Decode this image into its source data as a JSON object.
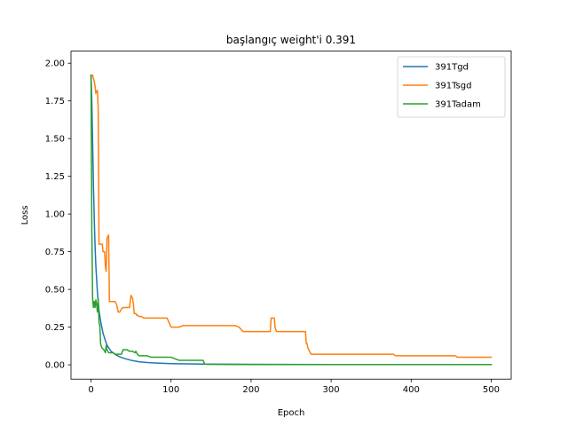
{
  "chart_data": {
    "type": "line",
    "title": "başlangıç weight'i 0.391",
    "xlabel": "Epoch",
    "ylabel": "Loss",
    "xlim": [
      -25,
      525
    ],
    "ylim": [
      -0.095,
      2.08
    ],
    "xticks": [
      0,
      100,
      200,
      300,
      400,
      500
    ],
    "yticks": [
      0.0,
      0.25,
      0.5,
      0.75,
      1.0,
      1.25,
      1.5,
      1.75,
      2.0
    ],
    "ytick_labels": [
      "0.00",
      "0.25",
      "0.50",
      "0.75",
      "1.00",
      "1.25",
      "1.50",
      "1.75",
      "2.00"
    ],
    "legend_position": "top-right",
    "grid": false,
    "series": [
      {
        "name": "391Tgd",
        "color": "#1f77b4",
        "x": [
          0,
          1,
          2,
          3,
          4,
          5,
          6,
          8,
          10,
          12,
          15,
          18,
          20,
          25,
          30,
          35,
          40,
          50,
          60,
          70,
          80,
          100,
          120,
          140,
          160,
          200,
          300,
          400,
          500
        ],
        "y": [
          1.92,
          1.75,
          1.48,
          1.2,
          0.98,
          0.8,
          0.66,
          0.48,
          0.36,
          0.29,
          0.21,
          0.16,
          0.13,
          0.09,
          0.07,
          0.055,
          0.045,
          0.03,
          0.02,
          0.015,
          0.012,
          0.008,
          0.006,
          0.005,
          0.004,
          0.003,
          0.002,
          0.002,
          0.002
        ]
      },
      {
        "name": "391Tsgd",
        "color": "#ff7f0e",
        "x": [
          0,
          2,
          3,
          4,
          5,
          6,
          7,
          8,
          9,
          10,
          11,
          12,
          14,
          15,
          17,
          18,
          19,
          20,
          21,
          22,
          23,
          24,
          25,
          26,
          28,
          30,
          32,
          34,
          36,
          38,
          40,
          42,
          44,
          46,
          48,
          50,
          52,
          53,
          54,
          55,
          56,
          57,
          58,
          60,
          63,
          66,
          70,
          75,
          80,
          85,
          90,
          95,
          100,
          110,
          115,
          120,
          130,
          140,
          150,
          160,
          170,
          180,
          185,
          190,
          200,
          210,
          220,
          224,
          225,
          226,
          227,
          228,
          229,
          230,
          231,
          232,
          240,
          250,
          260,
          265,
          268,
          269,
          270,
          271,
          275,
          280,
          290,
          300,
          310,
          320,
          330,
          340,
          350,
          360,
          370,
          378,
          380,
          390,
          400,
          410,
          420,
          430,
          440,
          450,
          455,
          458,
          460,
          470,
          480,
          490,
          500
        ],
        "y": [
          1.92,
          1.92,
          1.9,
          1.88,
          1.85,
          1.8,
          1.81,
          1.82,
          1.7,
          0.8,
          0.8,
          0.8,
          0.8,
          0.75,
          0.75,
          0.65,
          0.62,
          0.84,
          0.85,
          0.86,
          0.42,
          0.42,
          0.42,
          0.42,
          0.42,
          0.42,
          0.4,
          0.35,
          0.35,
          0.37,
          0.38,
          0.38,
          0.38,
          0.38,
          0.38,
          0.46,
          0.44,
          0.4,
          0.34,
          0.34,
          0.34,
          0.33,
          0.33,
          0.32,
          0.32,
          0.31,
          0.31,
          0.31,
          0.31,
          0.31,
          0.31,
          0.31,
          0.25,
          0.25,
          0.26,
          0.26,
          0.26,
          0.26,
          0.26,
          0.26,
          0.26,
          0.26,
          0.25,
          0.22,
          0.22,
          0.22,
          0.22,
          0.22,
          0.31,
          0.31,
          0.31,
          0.31,
          0.31,
          0.25,
          0.23,
          0.22,
          0.22,
          0.22,
          0.22,
          0.22,
          0.22,
          0.14,
          0.14,
          0.11,
          0.07,
          0.07,
          0.07,
          0.07,
          0.07,
          0.07,
          0.07,
          0.07,
          0.07,
          0.07,
          0.07,
          0.07,
          0.06,
          0.06,
          0.06,
          0.06,
          0.06,
          0.06,
          0.06,
          0.06,
          0.06,
          0.05,
          0.05,
          0.05,
          0.05,
          0.05,
          0.05
        ]
      },
      {
        "name": "391Tadam",
        "color": "#2ca02c",
        "x": [
          0,
          1,
          2,
          3,
          4,
          5,
          6,
          7,
          8,
          9,
          10,
          11,
          12,
          13,
          14,
          16,
          18,
          19,
          20,
          22,
          25,
          28,
          30,
          32,
          35,
          38,
          40,
          45,
          48,
          50,
          52,
          55,
          56,
          58,
          60,
          62,
          65,
          68,
          70,
          75,
          80,
          90,
          100,
          110,
          115,
          120,
          130,
          140,
          142,
          145,
          150,
          200,
          300,
          400,
          500
        ],
        "y": [
          1.92,
          0.9,
          0.44,
          0.38,
          0.42,
          0.38,
          0.43,
          0.4,
          0.35,
          0.44,
          0.28,
          0.26,
          0.14,
          0.12,
          0.11,
          0.1,
          0.08,
          0.13,
          0.1,
          0.08,
          0.08,
          0.08,
          0.07,
          0.07,
          0.07,
          0.07,
          0.1,
          0.1,
          0.09,
          0.09,
          0.09,
          0.08,
          0.09,
          0.07,
          0.06,
          0.06,
          0.06,
          0.06,
          0.06,
          0.05,
          0.05,
          0.05,
          0.05,
          0.03,
          0.03,
          0.03,
          0.03,
          0.03,
          0.005,
          0.003,
          0.003,
          0.002,
          0.002,
          0.002,
          0.002
        ]
      }
    ]
  }
}
